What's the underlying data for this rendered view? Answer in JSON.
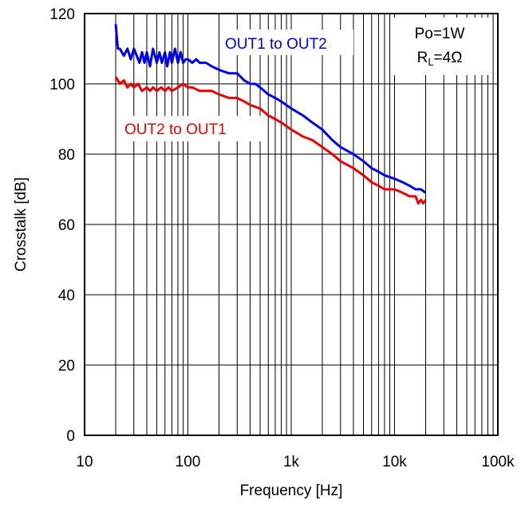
{
  "chart_data": {
    "type": "line",
    "xscale": "log",
    "xlim": [
      10,
      100000
    ],
    "ylim": [
      0,
      120
    ],
    "xlabel": "Frequency [Hz]",
    "ylabel": "Crosstalk [dB]",
    "grid": true,
    "x_ticks": [
      {
        "value": 10,
        "label": "10"
      },
      {
        "value": 100,
        "label": "100"
      },
      {
        "value": 1000,
        "label": "1k"
      },
      {
        "value": 10000,
        "label": "10k"
      },
      {
        "value": 100000,
        "label": "100k"
      }
    ],
    "y_ticks": [
      0,
      20,
      40,
      60,
      80,
      100,
      120
    ],
    "conditions": {
      "line1": "Po=1W",
      "rl_main": "R",
      "rl_sub": "L",
      "rl_rest": "=4Ω"
    },
    "series": [
      {
        "name": "OUT1 to OUT2",
        "color": "#0000ee",
        "x": [
          20,
          21,
          22,
          24,
          26,
          28,
          30,
          32,
          34,
          36,
          38,
          40,
          43,
          46,
          50,
          53,
          56,
          60,
          63,
          67,
          70,
          75,
          80,
          85,
          90,
          95,
          100,
          110,
          120,
          130,
          150,
          170,
          200,
          250,
          300,
          350,
          400,
          450,
          500,
          600,
          700,
          800,
          1000,
          1300,
          1600,
          2000,
          2500,
          3000,
          4000,
          5000,
          6000,
          7000,
          8000,
          10000,
          12000,
          14000,
          16000,
          18000,
          20000
        ],
        "y": [
          117,
          110,
          110,
          108,
          110,
          107,
          110,
          108,
          106,
          109,
          106,
          109,
          105,
          110,
          106,
          109,
          106,
          109,
          105,
          109,
          106,
          110,
          106,
          109,
          106,
          107,
          107,
          106,
          107,
          106,
          106,
          105,
          104,
          103,
          103,
          101,
          100,
          100,
          99,
          97,
          96,
          95,
          93,
          91,
          89,
          87,
          84,
          82,
          80,
          78,
          76,
          75,
          74,
          73,
          72,
          71,
          70,
          70,
          69
        ]
      },
      {
        "name": "OUT2 to OUT1",
        "color": "#ee0000",
        "x": [
          20,
          22,
          24,
          26,
          28,
          30,
          33,
          36,
          40,
          43,
          46,
          50,
          55,
          60,
          65,
          70,
          80,
          90,
          100,
          110,
          130,
          150,
          170,
          200,
          250,
          300,
          350,
          400,
          500,
          600,
          700,
          800,
          1000,
          1300,
          1600,
          2000,
          2500,
          3000,
          4000,
          5000,
          6000,
          7000,
          8000,
          10000,
          12000,
          14000,
          16000,
          17000,
          18000,
          19000,
          20000
        ],
        "y": [
          102,
          100,
          101,
          99,
          100,
          99,
          100,
          98,
          99,
          98,
          99,
          98,
          99,
          98,
          99,
          98,
          99,
          100,
          99,
          99,
          98,
          98,
          98,
          97,
          96,
          96,
          95,
          94,
          93,
          91,
          90,
          89,
          87,
          85,
          84,
          82,
          80,
          78,
          76,
          74,
          72,
          71,
          70,
          70,
          69,
          68,
          68,
          66,
          67,
          66,
          67
        ]
      }
    ]
  }
}
